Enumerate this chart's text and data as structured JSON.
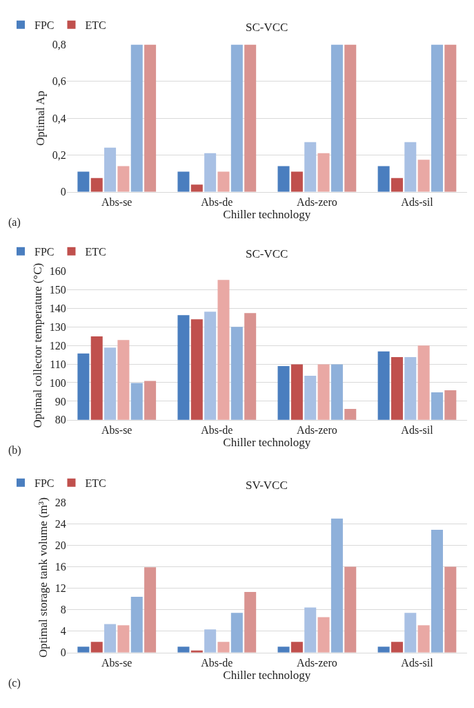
{
  "chart_data": [
    {
      "type": "bar",
      "title": "SC-VCC",
      "xlabel": "Chiller technology",
      "ylabel": "Optimal Ap",
      "annotations": [
        "(a)"
      ],
      "categories": [
        "Abs-se",
        "Abs-de",
        "Ads-zero",
        "Ads-sil"
      ],
      "ylim": [
        0,
        0.8
      ],
      "yticks": [
        0,
        {
          "value": 0.2,
          "label": "0,2"
        },
        {
          "value": 0.4,
          "label": "0,4"
        },
        {
          "value": 0.6,
          "label": "0,6"
        },
        {
          "value": 0.8,
          "label": "0,8"
        }
      ],
      "grid": "y",
      "legend": "top left",
      "series": [
        {
          "name": "FPC",
          "color": "#4a7ebf",
          "values": [
            0.11,
            0.11,
            0.14,
            0.14
          ]
        },
        {
          "name": "ETC",
          "color": "#c0504d",
          "values": [
            0.075,
            0.04,
            0.11,
            0.075
          ]
        },
        {
          "color": "#a8c0e4",
          "values": [
            0.24,
            0.21,
            0.27,
            0.27
          ]
        },
        {
          "color": "#e9a8a4",
          "values": [
            0.14,
            0.11,
            0.21,
            0.175
          ]
        },
        {
          "color": "#8eb0da",
          "values": [
            0.8,
            0.8,
            0.8,
            0.8
          ]
        },
        {
          "color": "#d99390",
          "values": [
            0.8,
            0.8,
            0.8,
            0.8
          ]
        }
      ]
    },
    {
      "type": "bar",
      "title": "SC-VCC",
      "xlabel": "Chiller technology",
      "ylabel": "Optimal collector temperature (°C)",
      "annotations": [
        "(b)"
      ],
      "categories": [
        "Abs-se",
        "Abs-de",
        "Ads-zero",
        "Ads-sil"
      ],
      "ylim": [
        80,
        160
      ],
      "yticks": [
        80,
        90,
        100,
        110,
        120,
        130,
        140,
        150,
        160
      ],
      "grid": "y",
      "legend": "top left",
      "series": [
        {
          "name": "FPC",
          "color": "#4a7ebf",
          "values": [
            115.7,
            136.3,
            108.9,
            116.8
          ]
        },
        {
          "name": "ETC",
          "color": "#c0504d",
          "values": [
            124.9,
            134.1,
            109.8,
            113.7
          ]
        },
        {
          "color": "#a8c0e4",
          "values": [
            118.8,
            138.2,
            103.7,
            113.7
          ]
        },
        {
          "color": "#e9a8a4",
          "values": [
            122.9,
            155.2,
            109.8,
            120
          ]
        },
        {
          "color": "#8eb0da",
          "values": [
            99.8,
            130,
            109.8,
            94.8
          ]
        },
        {
          "color": "#d99390",
          "values": [
            100.9,
            137.4,
            85.9,
            95.9
          ]
        }
      ]
    },
    {
      "type": "bar",
      "title": "SV-VCC",
      "xlabel": "Chiller technology",
      "ylabel": "Optimal storage tank volume (m³)",
      "annotations": [
        "(c)"
      ],
      "categories": [
        "Abs-se",
        "Abs-de",
        "Ads-zero",
        "Ads-sil"
      ],
      "ylim": [
        0,
        28
      ],
      "yticks": [
        0,
        4,
        8,
        12,
        16,
        20,
        24,
        28
      ],
      "grid": "y",
      "legend": "top left",
      "series": [
        {
          "name": "FPC",
          "color": "#4a7ebf",
          "values": [
            1.1,
            1.1,
            1.1,
            1.1
          ]
        },
        {
          "name": "ETC",
          "color": "#c0504d",
          "values": [
            2.0,
            0.4,
            2.0,
            2.0
          ]
        },
        {
          "color": "#a8c0e4",
          "values": [
            5.3,
            4.3,
            8.4,
            7.4
          ]
        },
        {
          "color": "#e9a8a4",
          "values": [
            5.1,
            2.0,
            6.6,
            5.1
          ]
        },
        {
          "color": "#8eb0da",
          "values": [
            10.4,
            7.4,
            25.0,
            22.9
          ]
        },
        {
          "color": "#d99390",
          "values": [
            15.9,
            11.3,
            16.0,
            16.0
          ]
        }
      ]
    }
  ]
}
